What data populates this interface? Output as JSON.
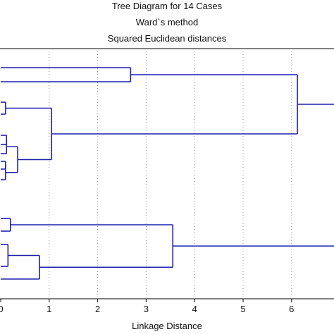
{
  "chart_data": {
    "type": "dendrogram",
    "title": "Tree Diagram for 14 Cases",
    "subtitle_lines": [
      "Ward`s method",
      "Squared Euclidean distances"
    ],
    "xlabel": "Linkage Distance",
    "xlim": [
      0,
      7
    ],
    "xticks": [
      0,
      1,
      2,
      3,
      4,
      5,
      6
    ],
    "tick_labels": [
      "0",
      "1",
      "2",
      "3",
      "4",
      "5",
      "6"
    ],
    "line_color": "#1f1fb4",
    "leaf_count": 14,
    "merge_heights": [
      0.1,
      0.12,
      0.12,
      0.1,
      0.1,
      0.35,
      1.05,
      2.68,
      6.12,
      0.2,
      0.15,
      0.8,
      3.55,
      7.0
    ]
  }
}
